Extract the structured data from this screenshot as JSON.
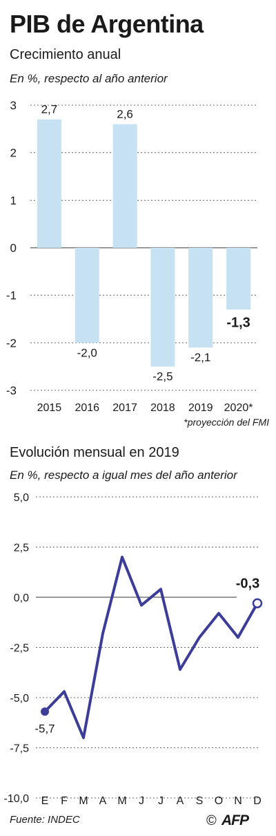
{
  "title": "PIB de Argentina",
  "source": "Fuente: INDEC",
  "logo": {
    "text": "AFP",
    "copyright": "©"
  },
  "colors": {
    "bar": "#c6e1f1",
    "line": "#3b3d99",
    "text": "#1a1a1a",
    "grid": "#666666"
  },
  "chart_data": [
    {
      "type": "bar",
      "subtitle": "Crecimiento anual",
      "note": "En %, respecto al año anterior",
      "footnote": "*proyección del FMI",
      "categories": [
        "2015",
        "2016",
        "2017",
        "2018",
        "2019",
        "2020*"
      ],
      "values": [
        2.7,
        -2.0,
        2.6,
        -2.5,
        -2.1,
        -1.3
      ],
      "value_labels": [
        "2,7",
        "-2,0",
        "2,6",
        "-2,5",
        "-2,1",
        "-1,3"
      ],
      "highlight_index": 5,
      "ylim": [
        -3,
        3
      ],
      "yticks": [
        3,
        2,
        1,
        0,
        -1,
        -2,
        -3
      ],
      "ytick_labels": [
        "3",
        "2",
        "1",
        "0",
        "-1",
        "-2",
        "-3"
      ],
      "grid": true
    },
    {
      "type": "line",
      "subtitle": "Evolución mensual en 2019",
      "note": "En %, respecto a igual mes del año anterior",
      "categories": [
        "E",
        "F",
        "M",
        "A",
        "M",
        "J",
        "J",
        "A",
        "S",
        "O",
        "N",
        "D"
      ],
      "values": [
        -5.7,
        -4.7,
        -7.0,
        -1.8,
        2.0,
        -0.4,
        0.4,
        -3.6,
        -2.0,
        -0.8,
        -2.0,
        -0.3
      ],
      "first_label": "-5,7",
      "last_label": "-0,3",
      "ylim": [
        -10,
        5
      ],
      "yticks": [
        5,
        2.5,
        0,
        -2.5,
        -5,
        -7.5,
        -10
      ],
      "ytick_labels": [
        "5,0",
        "2,5",
        "0,0",
        "-2,5",
        "-5,0",
        "-7,5",
        "-10,0"
      ],
      "grid": true
    }
  ]
}
